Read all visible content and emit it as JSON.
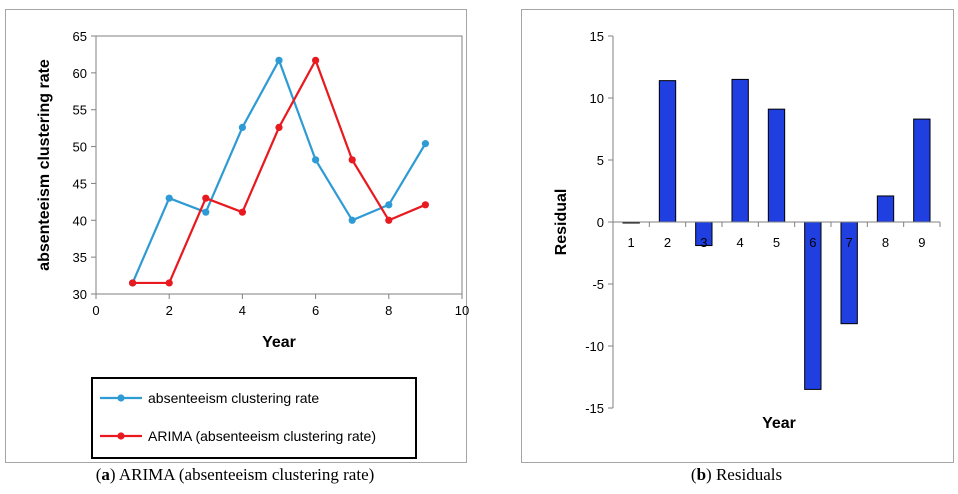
{
  "captions": {
    "a": {
      "open": "(",
      "letter": "a",
      "close": ")",
      "text": " ARIMA (absenteeism clustering rate)"
    },
    "b": {
      "open": "(",
      "letter": "b",
      "close": ")",
      "text": " Residuals"
    }
  },
  "chart_data": [
    {
      "type": "line",
      "xlabel": "Year",
      "ylabel": "absenteeism clustering rate",
      "xlim": [
        0,
        10
      ],
      "ylim": [
        30,
        65
      ],
      "xticks": [
        0,
        2,
        4,
        6,
        8,
        10
      ],
      "yticks": [
        30,
        35,
        40,
        45,
        50,
        55,
        60,
        65
      ],
      "grid": false,
      "legend_position": "bottom",
      "series": [
        {
          "name": "absenteeism clustering rate",
          "color": "#2e9bd4",
          "x": [
            1,
            2,
            3,
            4,
            5,
            6,
            7,
            8,
            9
          ],
          "y": [
            31.5,
            43,
            41.1,
            52.6,
            61.7,
            48.2,
            40,
            42.1,
            50.4
          ]
        },
        {
          "name": "ARIMA (absenteeism clustering rate)",
          "color": "#e8191f",
          "x": [
            1,
            2,
            3,
            4,
            5,
            6,
            7,
            8,
            9
          ],
          "y": [
            31.5,
            31.5,
            43,
            41.1,
            52.6,
            61.7,
            48.2,
            40,
            42.1
          ]
        }
      ]
    },
    {
      "type": "bar",
      "xlabel": "Year",
      "ylabel": "Residual",
      "categories": [
        "1",
        "2",
        "3",
        "4",
        "5",
        "6",
        "7",
        "8",
        "9"
      ],
      "values": [
        0,
        11.4,
        -1.9,
        11.5,
        9.1,
        -13.5,
        -8.2,
        2.1,
        8.3
      ],
      "ylim": [
        -15,
        15
      ],
      "yticks": [
        -15,
        -10,
        -5,
        0,
        5,
        10,
        15
      ],
      "bar_color": "#1f3fe0",
      "grid": false
    }
  ]
}
